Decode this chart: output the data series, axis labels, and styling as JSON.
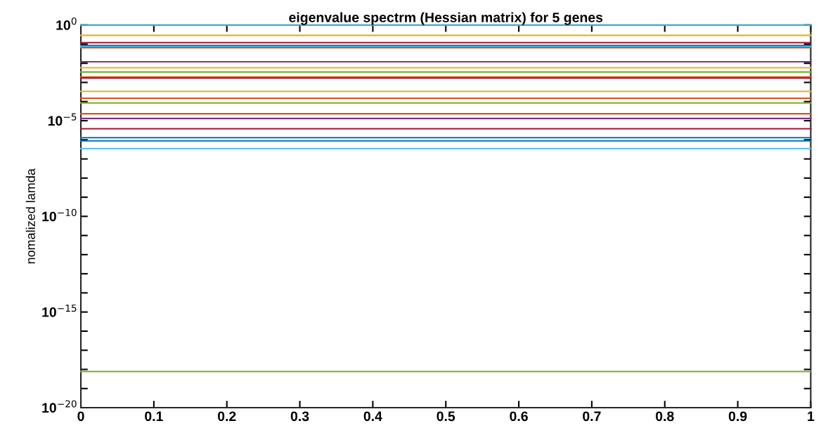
{
  "chart_data": {
    "type": "line",
    "title": "eigenvalue spectrm (Hessian matrix) for 5 genes",
    "ylabel": "nomalized lamda",
    "log": "y",
    "x": [
      0,
      1
    ],
    "xlim": [
      0,
      1
    ],
    "xticks": [
      0,
      0.1,
      0.2,
      0.3,
      0.4,
      0.5,
      0.6,
      0.7,
      0.8,
      0.9,
      1
    ],
    "ylim": [
      1e-20,
      1
    ],
    "yticks": [
      {
        "value": 1e-20,
        "label": "10$^{−20}$"
      },
      {
        "value": 1e-19,
        "label": null
      },
      {
        "value": 1e-18,
        "label": null
      },
      {
        "value": 1e-17,
        "label": null
      },
      {
        "value": 1e-16,
        "label": null
      },
      {
        "value": 1e-15,
        "label": "10$^{−15}$"
      },
      {
        "value": 1e-14,
        "label": null
      },
      {
        "value": 1e-13,
        "label": null
      },
      {
        "value": 1e-12,
        "label": null
      },
      {
        "value": 1e-11,
        "label": null
      },
      {
        "value": 1e-10,
        "label": "10$^{−10}$"
      },
      {
        "value": 1e-09,
        "label": null
      },
      {
        "value": 1e-08,
        "label": null
      },
      {
        "value": 1e-07,
        "label": null
      },
      {
        "value": 1e-06,
        "label": null
      },
      {
        "value": 1e-05,
        "label": "10$^{−5}$"
      },
      {
        "value": 0.0001,
        "label": null
      },
      {
        "value": 0.001,
        "label": null
      },
      {
        "value": 0.01,
        "label": null
      },
      {
        "value": 0.1,
        "label": null
      },
      {
        "value": 1,
        "label": "10$^{0}$"
      }
    ],
    "grid": false,
    "legend": false,
    "line_style": "solid",
    "marker": "none",
    "series": [
      {
        "color": "#4dbeee",
        "values": [
          1,
          1
        ]
      },
      {
        "color": "#edb120",
        "values": [
          0.29,
          0.29
        ]
      },
      {
        "color": "#a2142f",
        "values": [
          0.12,
          0.12
        ]
      },
      {
        "color": "#0072bd",
        "values": [
          0.085,
          0.085
        ]
      },
      {
        "color": "#4dbeee",
        "values": [
          0.074,
          0.074
        ]
      },
      {
        "color": "#d95319",
        "values": [
          0.065,
          0.065
        ]
      },
      {
        "color": "#7e2f8e",
        "values": [
          0.012,
          0.012
        ]
      },
      {
        "color": "#edb120",
        "values": [
          0.0059,
          0.0059
        ]
      },
      {
        "color": "#77ac30",
        "values": [
          0.0035,
          0.0035
        ]
      },
      {
        "color": "#d95319",
        "values": [
          0.0019,
          0.0019
        ]
      },
      {
        "color": "#a2142f",
        "values": [
          0.0017,
          0.0017
        ]
      },
      {
        "color": "#edb120",
        "values": [
          0.00034,
          0.00034
        ]
      },
      {
        "color": "#d95319",
        "values": [
          0.00015,
          0.00015
        ]
      },
      {
        "color": "#77ac30",
        "values": [
          8.5e-05,
          8.5e-05
        ]
      },
      {
        "color": "#d95319",
        "values": [
          2.3e-05,
          2.3e-05
        ]
      },
      {
        "color": "#7e2f8e",
        "values": [
          1.3e-05,
          1.3e-05
        ]
      },
      {
        "color": "#a2142f",
        "values": [
          3.8e-06,
          3.8e-06
        ]
      },
      {
        "color": "#0072bd",
        "values": [
          1.3e-06,
          1.3e-06
        ]
      },
      {
        "color": "#0072bd",
        "values": [
          8.9e-07,
          8.9e-07
        ]
      },
      {
        "color": "#4dbeee",
        "values": [
          3.5e-07,
          3.5e-07
        ]
      },
      {
        "color": "#77ac30",
        "values": [
          7.8e-19,
          7.8e-19
        ]
      }
    ]
  }
}
